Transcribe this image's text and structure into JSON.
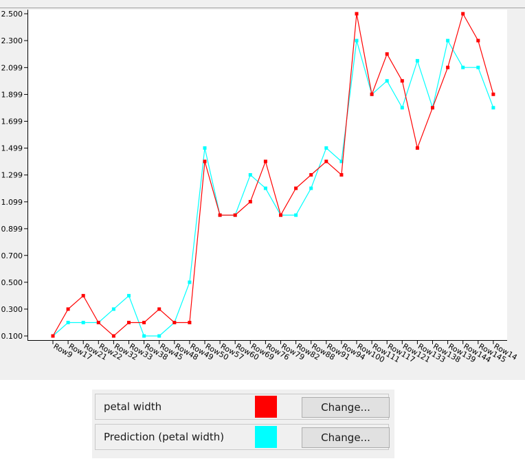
{
  "chart_data": {
    "type": "line",
    "categories": [
      "Row9",
      "Row17",
      "Row21",
      "Row22",
      "Row32",
      "Row33",
      "Row38",
      "Row45",
      "Row48",
      "Row49",
      "Row50",
      "Row57",
      "Row60",
      "Row69",
      "Row76",
      "Row79",
      "Row82",
      "Row88",
      "Row91",
      "Row94",
      "Row100",
      "Row111",
      "Row117",
      "Row121",
      "Row133",
      "Row138",
      "Row139",
      "Row144",
      "Row145",
      "Row14"
    ],
    "yticks": [
      "0.100",
      "0.300",
      "0.500",
      "0.700",
      "0.899",
      "1.099",
      "1.299",
      "1.499",
      "1.699",
      "1.899",
      "2.099",
      "2.300",
      "2.500"
    ],
    "ylim": [
      0.1,
      2.5
    ],
    "grid": false,
    "series": [
      {
        "name": "petal width",
        "color": "#ff0000",
        "values": [
          0.1,
          0.3,
          0.4,
          0.2,
          0.1,
          0.2,
          0.2,
          0.3,
          0.2,
          0.2,
          1.4,
          1.0,
          1.0,
          1.1,
          1.4,
          1.0,
          1.2,
          1.3,
          1.4,
          1.3,
          2.5,
          1.9,
          2.2,
          2.0,
          1.5,
          1.8,
          2.1,
          2.5,
          2.3,
          1.9
        ]
      },
      {
        "name": "Prediction (petal width)",
        "color": "#00ffff",
        "values": [
          0.1,
          0.2,
          0.2,
          0.2,
          0.3,
          0.4,
          0.1,
          0.1,
          0.2,
          0.5,
          1.5,
          1.0,
          1.0,
          1.3,
          1.2,
          1.0,
          1.0,
          1.2,
          1.5,
          1.4,
          2.3,
          1.9,
          2.0,
          1.8,
          2.15,
          1.8,
          2.3,
          2.1,
          2.1,
          1.8
        ]
      }
    ]
  },
  "legend": {
    "items": [
      {
        "label": "petal width",
        "color": "#ff0000",
        "button": "Change..."
      },
      {
        "label": "Prediction (petal width)",
        "color": "#00ffff",
        "button": "Change..."
      }
    ]
  }
}
